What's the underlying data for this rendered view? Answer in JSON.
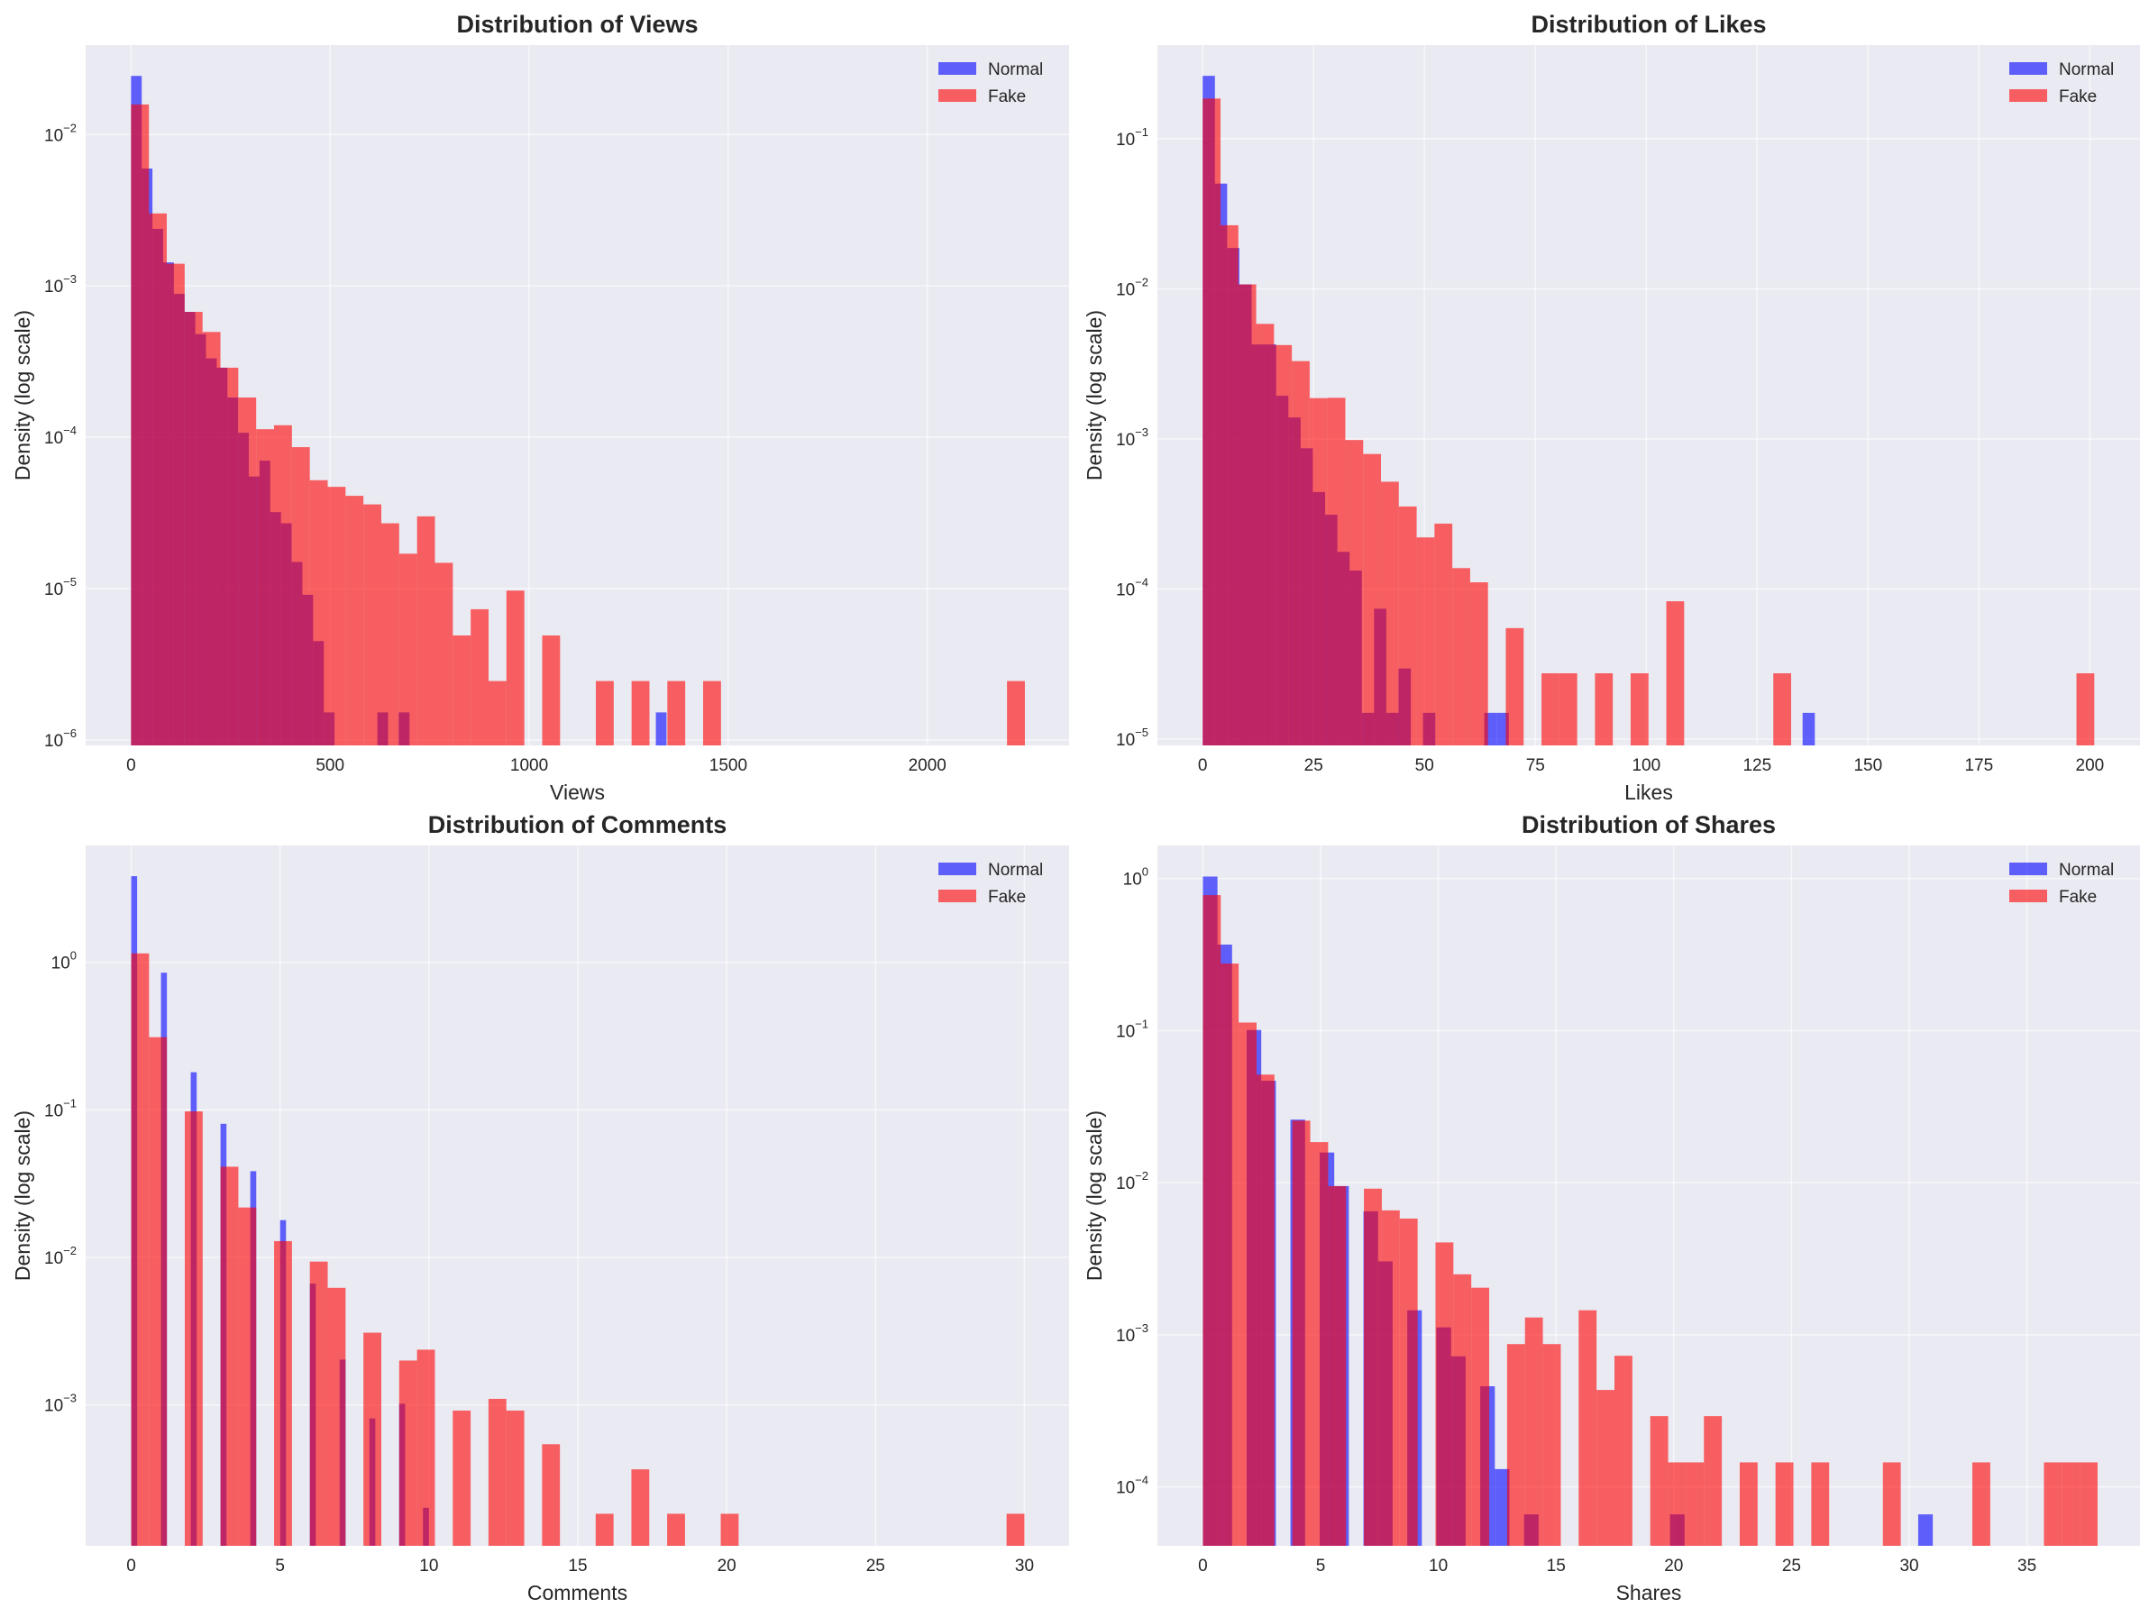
{
  "style": {
    "background": "#eaeaf2",
    "grid": "#ffffff",
    "normal_color": "#0000ff",
    "fake_color": "#ff0000",
    "alpha": 0.6
  },
  "chart_data": [
    {
      "type": "bar",
      "histogram": true,
      "title": "Distribution of Views",
      "xlabel": "Views",
      "ylabel": "Density (log scale)",
      "xlim": [
        -114,
        2356
      ],
      "ylim": [
        9.2e-07,
        0.039
      ],
      "yscale": "log",
      "xticks": [
        "0",
        "500",
        "1000",
        "1500",
        "2000"
      ],
      "xtick_values": [
        0,
        500,
        1000,
        1500,
        2000
      ],
      "yticks_exp": [
        -6,
        -5,
        -4,
        -3,
        -2
      ],
      "grid": true,
      "legend": "top-right",
      "series": [
        {
          "name": "Normal",
          "bin_start": 0,
          "bin_width": 26.9,
          "values": [
            0.0244,
            0.00596,
            0.00238,
            0.00143,
            0.000885,
            0.000673,
            0.00048,
            0.000332,
            0.000288,
            0.000183,
            0.000107,
            5.5e-05,
            7e-05,
            3.2e-05,
            2.7e-05,
            1.5e-05,
            9.1e-06,
            4.5e-06,
            1.52e-06,
            0,
            0,
            0,
            0,
            1.52e-06,
            0,
            1.52e-06,
            0,
            0,
            0,
            0,
            0,
            0,
            0,
            0,
            0,
            0,
            0,
            0,
            0,
            0,
            0,
            0,
            0,
            0,
            0,
            0,
            0,
            0,
            0,
            1.52e-06
          ]
        },
        {
          "name": "Fake",
          "bin_start": 0,
          "bin_width": 44.9,
          "values": [
            0.0158,
            0.00301,
            0.0014,
            0.000673,
            0.000496,
            0.000288,
            0.000183,
            0.000113,
            0.00012,
            8.6e-05,
            5.2e-05,
            4.7e-05,
            4.1e-05,
            3.6e-05,
            2.7e-05,
            1.7e-05,
            3e-05,
            1.48e-05,
            4.9e-06,
            7.3e-06,
            2.45e-06,
            9.7e-06,
            0,
            4.9e-06,
            0,
            0,
            2.45e-06,
            0,
            2.45e-06,
            0,
            2.45e-06,
            0,
            2.45e-06,
            0,
            0,
            0,
            0,
            0,
            0,
            0,
            0,
            0,
            0,
            0,
            0,
            0,
            0,
            0,
            0,
            2.45e-06
          ]
        }
      ]
    },
    {
      "type": "bar",
      "histogram": true,
      "title": "Distribution of Likes",
      "xlabel": "Likes",
      "ylabel": "Density (log scale)",
      "xlim": [
        -10.2,
        211.3
      ],
      "ylim": [
        9.1e-06,
        0.42
      ],
      "yscale": "log",
      "xticks": [
        "0",
        "25",
        "50",
        "75",
        "100",
        "125",
        "150",
        "175",
        "200"
      ],
      "xtick_values": [
        0,
        25,
        50,
        75,
        100,
        125,
        150,
        175,
        200
      ],
      "yticks_exp": [
        -5,
        -4,
        -3,
        -2,
        -1
      ],
      "grid": true,
      "legend": "top-right",
      "series": [
        {
          "name": "Normal",
          "bin_start": 0,
          "bin_width": 2.76,
          "values": [
            0.262,
            0.0502,
            0.0187,
            0.0107,
            0.00426,
            0.00426,
            0.00194,
            0.00139,
            0.000867,
            0.000443,
            0.000313,
            0.000177,
            0.000133,
            1.5e-05,
            7.4e-05,
            1.5e-05,
            2.96e-05,
            0,
            1.5e-05,
            0,
            0,
            0,
            0,
            1.5e-05,
            1.5e-05,
            0,
            0,
            0,
            0,
            0,
            0,
            0,
            0,
            0,
            0,
            0,
            0,
            0,
            0,
            0,
            0,
            0,
            0,
            0,
            0,
            0,
            0,
            0,
            0,
            1.5e-05
          ]
        },
        {
          "name": "Fake",
          "bin_start": 0,
          "bin_width": 4.02,
          "values": [
            0.185,
            0.0265,
            0.0107,
            0.00584,
            0.00422,
            0.0033,
            0.00187,
            0.00188,
            0.000984,
            0.000794,
            0.000519,
            0.000355,
            0.000221,
            0.000273,
            0.000138,
            0.000111,
            0,
            5.5e-05,
            0,
            2.75e-05,
            2.75e-05,
            0,
            2.75e-05,
            0,
            2.75e-05,
            0,
            8.3e-05,
            0,
            0,
            0,
            0,
            0,
            2.75e-05,
            0,
            0,
            0,
            0,
            0,
            0,
            0,
            0,
            0,
            0,
            0,
            0,
            0,
            0,
            0,
            0,
            2.75e-05
          ]
        }
      ]
    },
    {
      "type": "bar",
      "histogram": true,
      "title": "Distribution of Comments",
      "xlabel": "Comments",
      "ylabel": "Density (log scale)",
      "xlim": [
        -1.53,
        31.5
      ],
      "ylim": [
        0.000111,
        6.2
      ],
      "yscale": "log",
      "xticks": [
        "0",
        "5",
        "10",
        "15",
        "20",
        "25",
        "30"
      ],
      "xtick_values": [
        0,
        5,
        10,
        15,
        20,
        25,
        30
      ],
      "yticks_exp": [
        -3,
        -2,
        -1,
        0
      ],
      "grid": true,
      "legend": "top-right",
      "series": [
        {
          "name": "Normal",
          "bin_start": 0,
          "bin_width": 0.2,
          "values": [
            3.84,
            0,
            0,
            0,
            0,
            0.851,
            0,
            0,
            0,
            0,
            0.18,
            0,
            0,
            0,
            0,
            0.0805,
            0,
            0,
            0,
            0,
            0.0384,
            0,
            0,
            0,
            0,
            0.0179,
            0,
            0,
            0,
            0,
            0.00664,
            0,
            0,
            0,
            0,
            0.00203,
            0,
            0,
            0,
            0,
            0.00081,
            0,
            0,
            0,
            0,
            0.00102,
            0,
            0,
            0,
            0.000201
          ]
        },
        {
          "name": "Fake",
          "bin_start": 0,
          "bin_width": 0.6,
          "values": [
            1.15,
            0.311,
            0,
            0.0977,
            0,
            0.0412,
            0.0218,
            0,
            0.0129,
            0,
            0.00937,
            0.00622,
            0,
            0.00309,
            0,
            0.002,
            0.00237,
            0,
            0.000916,
            0,
            0.0011,
            0.000916,
            0,
            0.000542,
            0,
            0,
            0.000183,
            0,
            0.000366,
            0,
            0.000183,
            0,
            0,
            0.000183,
            0,
            0,
            0,
            0,
            0,
            0,
            0,
            0,
            0,
            0,
            0,
            0,
            0,
            0,
            0,
            0.000183
          ]
        }
      ]
    },
    {
      "type": "bar",
      "histogram": true,
      "title": "Distribution of Shares",
      "xlabel": "Shares",
      "ylabel": "Density (log scale)",
      "xlim": [
        -1.93,
        39.8
      ],
      "ylim": [
        4.1e-05,
        1.65
      ],
      "yscale": "log",
      "xticks": [
        "0",
        "5",
        "10",
        "15",
        "20",
        "25",
        "30",
        "35"
      ],
      "xtick_values": [
        0,
        5,
        10,
        15,
        20,
        25,
        30,
        35
      ],
      "yticks_exp": [
        -4,
        -3,
        -2,
        -1,
        0
      ],
      "grid": true,
      "legend": "top-right",
      "series": [
        {
          "name": "Normal",
          "bin_start": 0,
          "bin_width": 0.62,
          "values": [
            1.03,
            0.368,
            0,
            0.101,
            0.0468,
            0,
            0.026,
            0,
            0.0158,
            0.0095,
            0,
            0.00649,
            0.00304,
            0,
            0.00145,
            0,
            0.00112,
            0.000722,
            0,
            0.000459,
            0.000131,
            0,
            6.6e-05,
            0,
            0,
            0,
            0,
            0,
            0,
            0,
            0,
            0,
            6.6e-05,
            0,
            0,
            0,
            0,
            0,
            0,
            0,
            0,
            0,
            0,
            0,
            0,
            0,
            0,
            0,
            0,
            6.6e-05
          ]
        },
        {
          "name": "Fake",
          "bin_start": 0,
          "bin_width": 0.76,
          "values": [
            0.778,
            0.276,
            0.113,
            0.0514,
            0,
            0.0256,
            0.0185,
            0.0095,
            0,
            0.00914,
            0.00658,
            0.00581,
            0,
            0.00405,
            0.0025,
            0.00204,
            0,
            0.000869,
            0.0013,
            0.000869,
            0,
            0.00145,
            0.000434,
            0.000728,
            0,
            0.000292,
            0.000145,
            0.000145,
            0.000292,
            0,
            0.000145,
            0,
            0.000145,
            0,
            0.000145,
            0,
            0,
            0,
            0.000145,
            0,
            0,
            0,
            0,
            0.000145,
            0,
            0,
            0,
            0.000145,
            0.000145,
            0.000145
          ]
        }
      ]
    }
  ]
}
